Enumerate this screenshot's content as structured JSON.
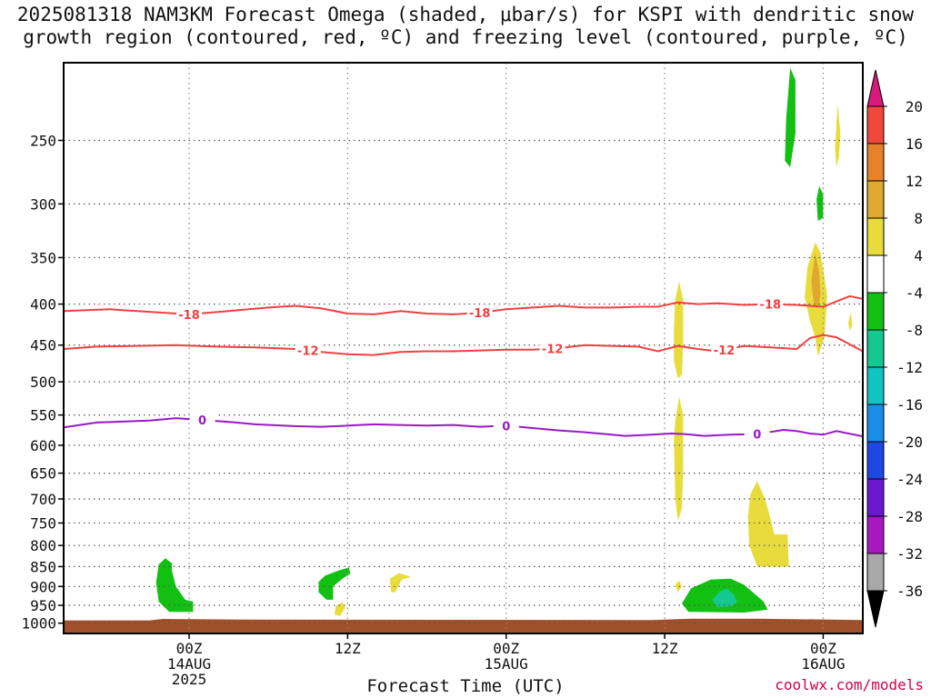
{
  "title": {
    "line1": "2025081318 NAM3KM Forecast Omega (shaded, μbar/s) for KSPI with dendritic snow",
    "line2": "growth region (contoured, red, ºC) and freezing level (contoured, purple, ºC)"
  },
  "credit": "coolwx.com/models",
  "chart_data": {
    "type": "time-height cross section",
    "x_label": "Forecast Time (UTC)",
    "x_range_hours": [
      -9.5,
      51
    ],
    "x_ticks": [
      {
        "hour": 0,
        "lines": [
          "00Z",
          "14AUG",
          "2025"
        ]
      },
      {
        "hour": 12,
        "lines": [
          "12Z"
        ]
      },
      {
        "hour": 24,
        "lines": [
          "00Z",
          "15AUG"
        ]
      },
      {
        "hour": 36,
        "lines": [
          "12Z"
        ]
      },
      {
        "hour": 48,
        "lines": [
          "00Z",
          "16AUG"
        ]
      }
    ],
    "y_axis": "pressure (hPa), log scale",
    "y_range": [
      200,
      1030
    ],
    "y_ticks": [
      250,
      300,
      350,
      400,
      450,
      500,
      550,
      600,
      650,
      700,
      750,
      800,
      850,
      900,
      950,
      1000
    ],
    "grid": "dotted",
    "colorbar": {
      "levels": [
        20,
        16,
        12,
        8,
        4,
        -4,
        -8,
        -12,
        -16,
        -20,
        -24,
        -28,
        -32,
        -36
      ],
      "colors": [
        "#d81b7a",
        "#f0483c",
        "#e8822a",
        "#e0a830",
        "#e8dc3c",
        "#ffffff",
        "#12c012",
        "#14c890",
        "#10c4c4",
        "#1a8ee8",
        "#1e48e0",
        "#6c18d0",
        "#a818c0",
        "#a8a8a8",
        "#000000"
      ]
    },
    "contours": [
      {
        "label": "-18",
        "color": "#f04040",
        "points": [
          [
            -9.5,
            408
          ],
          [
            -6,
            406
          ],
          [
            -3,
            409
          ],
          [
            0,
            412
          ],
          [
            3,
            408
          ],
          [
            6,
            404
          ],
          [
            8,
            402
          ],
          [
            10,
            405
          ],
          [
            12,
            411
          ],
          [
            14,
            412
          ],
          [
            16,
            408
          ],
          [
            18,
            411
          ],
          [
            20,
            412
          ],
          [
            22,
            410
          ],
          [
            24,
            406
          ],
          [
            26,
            404
          ],
          [
            28,
            402
          ],
          [
            30,
            404
          ],
          [
            32,
            404
          ],
          [
            34,
            403
          ],
          [
            35.5,
            403
          ],
          [
            37,
            398
          ],
          [
            38.5,
            400
          ],
          [
            40,
            399
          ],
          [
            42,
            401
          ],
          [
            44,
            400
          ],
          [
            46,
            401
          ],
          [
            48,
            403
          ],
          [
            50,
            391
          ],
          [
            51,
            394
          ]
        ],
        "label_hours": [
          0,
          22,
          44
        ]
      },
      {
        "label": "-12",
        "color": "#f04040",
        "points": [
          [
            -9.5,
            455
          ],
          [
            -7,
            452
          ],
          [
            -4,
            451
          ],
          [
            -1,
            450
          ],
          [
            2,
            452
          ],
          [
            5,
            453
          ],
          [
            8,
            455
          ],
          [
            10,
            459
          ],
          [
            12,
            462
          ],
          [
            14,
            463
          ],
          [
            16,
            459
          ],
          [
            18,
            458
          ],
          [
            20,
            458
          ],
          [
            22,
            457
          ],
          [
            24,
            456
          ],
          [
            26,
            456
          ],
          [
            28,
            454
          ],
          [
            30,
            450
          ],
          [
            32,
            451
          ],
          [
            34,
            452
          ],
          [
            35.5,
            458
          ],
          [
            37,
            451
          ],
          [
            38.5,
            455
          ],
          [
            40,
            458
          ],
          [
            42,
            451
          ],
          [
            44,
            453
          ],
          [
            46,
            455
          ],
          [
            47,
            441
          ],
          [
            48,
            437
          ],
          [
            49,
            440
          ],
          [
            51,
            458
          ]
        ],
        "label_hours": [
          9,
          27.5,
          40.5
        ]
      },
      {
        "label": "0",
        "color": "#9a18c8",
        "points": [
          [
            -9.5,
            570
          ],
          [
            -7,
            562
          ],
          [
            -3,
            559
          ],
          [
            -1,
            555
          ],
          [
            1,
            558
          ],
          [
            3,
            561
          ],
          [
            5,
            565
          ],
          [
            8,
            568
          ],
          [
            10,
            569
          ],
          [
            12,
            567
          ],
          [
            14,
            565
          ],
          [
            16,
            566
          ],
          [
            18,
            567
          ],
          [
            20,
            566
          ],
          [
            22,
            569
          ],
          [
            24,
            567
          ],
          [
            26,
            571
          ],
          [
            28,
            575
          ],
          [
            30,
            578
          ],
          [
            32,
            582
          ],
          [
            33,
            584
          ],
          [
            35,
            582
          ],
          [
            36.5,
            580
          ],
          [
            37.5,
            581
          ],
          [
            39,
            584
          ],
          [
            40,
            583
          ],
          [
            41,
            582
          ],
          [
            43,
            581
          ],
          [
            45,
            574
          ],
          [
            46,
            576
          ],
          [
            47,
            580
          ],
          [
            48,
            582
          ],
          [
            49,
            576
          ],
          [
            51,
            585
          ]
        ],
        "label_hours": [
          1,
          24,
          43
        ]
      }
    ],
    "shaded_regions": [
      {
        "level": "-4 to -8",
        "color": "#12c012",
        "polygon": [
          [
            -2.3,
            845
          ],
          [
            -1.8,
            830
          ],
          [
            -1.3,
            842
          ],
          [
            -1.3,
            860
          ],
          [
            -1,
            900
          ],
          [
            -0.3,
            935
          ],
          [
            0.3,
            940
          ],
          [
            0.3,
            968
          ],
          [
            -1.5,
            968
          ],
          [
            -2.3,
            940
          ],
          [
            -2.5,
            890
          ]
        ]
      },
      {
        "level": "-4 to -8",
        "color": "#12c012",
        "polygon": [
          [
            9.8,
            888
          ],
          [
            10.3,
            872
          ],
          [
            11.3,
            860
          ],
          [
            12.1,
            852
          ],
          [
            12.2,
            868
          ],
          [
            11.6,
            880
          ],
          [
            10.9,
            900
          ],
          [
            10.9,
            935
          ],
          [
            10.4,
            935
          ],
          [
            9.8,
            915
          ]
        ]
      },
      {
        "level": "-4 to -8",
        "color": "#12c012",
        "polygon": [
          [
            37.3,
            945
          ],
          [
            38,
            905
          ],
          [
            39.5,
            882
          ],
          [
            41,
            880
          ],
          [
            42,
            895
          ],
          [
            43.5,
            940
          ],
          [
            43.8,
            962
          ],
          [
            42,
            970
          ],
          [
            37.8,
            968
          ]
        ]
      },
      {
        "level": "-8 to -12",
        "color": "#14c890",
        "polygon": [
          [
            39.6,
            935
          ],
          [
            40.2,
            912
          ],
          [
            40.7,
            905
          ],
          [
            41.2,
            920
          ],
          [
            41.5,
            940
          ],
          [
            41,
            953
          ],
          [
            40,
            955
          ]
        ]
      },
      {
        "level": "-4 to -8",
        "color": "#12c012",
        "polygon": [
          [
            45.1,
            265
          ],
          [
            45.2,
            235
          ],
          [
            45.5,
            203
          ],
          [
            45.9,
            210
          ],
          [
            45.9,
            245
          ],
          [
            45.5,
            270
          ]
        ]
      },
      {
        "level": "-4 to -8",
        "color": "#12c012",
        "polygon": [
          [
            47.5,
            296
          ],
          [
            47.7,
            285
          ],
          [
            48,
            292
          ],
          [
            48,
            312
          ],
          [
            47.6,
            315
          ]
        ]
      },
      {
        "level": "4 to 8",
        "color": "#e8dc3c",
        "polygon": [
          [
            11.1,
            952
          ],
          [
            11.6,
            942
          ],
          [
            11.8,
            958
          ],
          [
            11.4,
            980
          ],
          [
            11,
            975
          ]
        ]
      },
      {
        "level": "4 to 8",
        "color": "#e8dc3c",
        "polygon": [
          [
            15.2,
            880
          ],
          [
            15.9,
            866
          ],
          [
            16.8,
            876
          ],
          [
            16.1,
            882
          ],
          [
            15.6,
            915
          ],
          [
            15.3,
            915
          ]
        ]
      },
      {
        "level": "4 to 8",
        "color": "#e8dc3c",
        "polygon": [
          [
            36.7,
            430
          ],
          [
            36.8,
            395
          ],
          [
            37.1,
            375
          ],
          [
            37.4,
            395
          ],
          [
            37.4,
            450
          ],
          [
            37.3,
            490
          ],
          [
            37,
            495
          ],
          [
            36.7,
            470
          ]
        ]
      },
      {
        "level": "4 to 8",
        "color": "#e8dc3c",
        "polygon": [
          [
            36.7,
            590
          ],
          [
            36.8,
            560
          ],
          [
            37.1,
            522
          ],
          [
            37.4,
            550
          ],
          [
            37.4,
            650
          ],
          [
            37.3,
            720
          ],
          [
            37,
            745
          ],
          [
            36.8,
            700
          ]
        ]
      },
      {
        "level": "4 to 8",
        "color": "#e8dc3c",
        "polygon": [
          [
            36.8,
            895
          ],
          [
            37.1,
            885
          ],
          [
            37.3,
            900
          ],
          [
            37,
            915
          ]
        ]
      },
      {
        "level": "4 to 8",
        "color": "#e8dc3c",
        "polygon": [
          [
            42.3,
            735
          ],
          [
            42.5,
            690
          ],
          [
            43,
            665
          ],
          [
            43.6,
            700
          ],
          [
            44,
            740
          ],
          [
            44.3,
            775
          ],
          [
            45.3,
            775
          ],
          [
            45.4,
            850
          ],
          [
            43,
            850
          ],
          [
            42.4,
            800
          ]
        ]
      },
      {
        "level": "4 to 8",
        "color": "#e8dc3c",
        "polygon": [
          [
            46.6,
            392
          ],
          [
            46.8,
            360
          ],
          [
            47.4,
            335
          ],
          [
            47.8,
            345
          ],
          [
            48.3,
            390
          ],
          [
            48.1,
            440
          ],
          [
            47.6,
            465
          ],
          [
            47.4,
            440
          ],
          [
            47,
            420
          ]
        ]
      },
      {
        "level": "8 to 12",
        "color": "#e0a830",
        "polygon": [
          [
            47.1,
            375
          ],
          [
            47.4,
            345
          ],
          [
            47.7,
            365
          ],
          [
            47.8,
            390
          ],
          [
            47.6,
            405
          ],
          [
            47.3,
            400
          ]
        ]
      },
      {
        "level": "4 to 8",
        "color": "#e8dc3c",
        "polygon": [
          [
            48.9,
            255
          ],
          [
            49.1,
            225
          ],
          [
            49.3,
            245
          ],
          [
            49.2,
            262
          ],
          [
            49,
            270
          ]
        ]
      },
      {
        "level": "4 to 8",
        "color": "#e8dc3c",
        "polygon": [
          [
            49.9,
            422
          ],
          [
            50.1,
            410
          ],
          [
            50.2,
            425
          ],
          [
            50,
            432
          ]
        ]
      },
      {
        "level": "4 to 8",
        "color": "#e8dc3c",
        "polygon": [
          [
            53.9,
            750
          ],
          [
            54.2,
            742
          ],
          [
            54.5,
            750
          ],
          [
            54.2,
            757
          ]
        ]
      }
    ],
    "ground": {
      "color": "#a0502a",
      "pressure_top": [
        [
          -9.5,
          992
        ],
        [
          -3,
          992
        ],
        [
          -2,
          988
        ],
        [
          5,
          990
        ],
        [
          35,
          991
        ],
        [
          38,
          987
        ],
        [
          43,
          987
        ],
        [
          51,
          991
        ]
      ]
    }
  }
}
